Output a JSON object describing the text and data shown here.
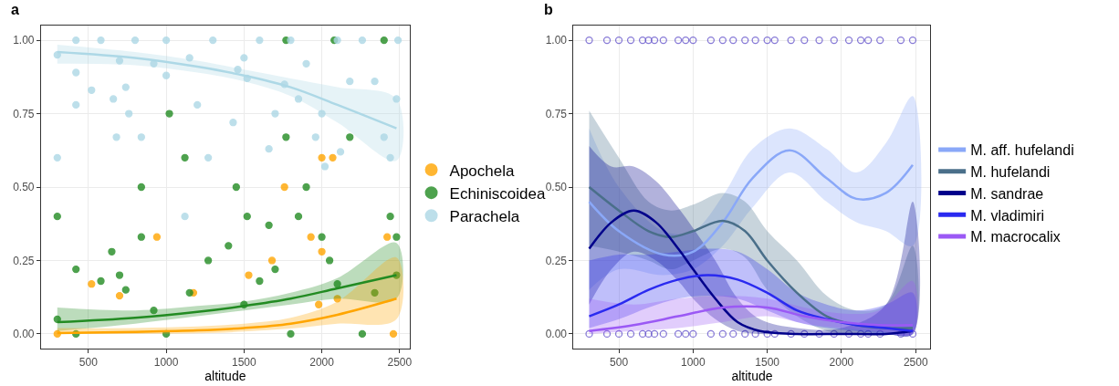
{
  "chart_data": [
    {
      "type": "scatter",
      "annotations": [
        "a"
      ],
      "xlabel": "altitude",
      "xlim": [
        195,
        2565
      ],
      "ylim": [
        -0.05,
        1.05
      ],
      "xticks": [
        500,
        1000,
        1500,
        2000,
        2500
      ],
      "yticks": [
        {
          "value": 0,
          "label": "0.00"
        },
        {
          "value": 0.25,
          "label": "0.25"
        },
        {
          "value": 0.5,
          "label": "0.50"
        },
        {
          "value": 0.75,
          "label": "0.75"
        },
        {
          "value": 1,
          "label": "1.00"
        }
      ],
      "grid": true,
      "legend": "right",
      "marker": "circle",
      "series": [
        {
          "name": "Apochela",
          "color": "#ffa500",
          "x": [
            300,
            520,
            700,
            940,
            1175,
            1530,
            1680,
            1760,
            1930,
            1980,
            2000,
            2070,
            2000,
            2420,
            2460,
            2100
          ],
          "values": [
            0,
            0.17,
            0.13,
            0.33,
            0.14,
            0.2,
            0.25,
            0.5,
            0.33,
            0.1,
            0.6,
            0.6,
            0.28,
            0.33,
            0,
            0.12
          ]
        },
        {
          "name": "Echiniscoidea",
          "color": "#228b22",
          "x": [
            300,
            300,
            420,
            420,
            580,
            650,
            700,
            740,
            840,
            840,
            920,
            1000,
            1020,
            1120,
            1150,
            1270,
            1400,
            1450,
            1520,
            1500,
            1600,
            1660,
            1700,
            1770,
            1770,
            1850,
            1900,
            2000,
            2050,
            2080,
            2100,
            2180,
            2260,
            2340,
            2400,
            2440,
            2480,
            2480,
            1800
          ],
          "values": [
            0.05,
            0.4,
            0.22,
            0,
            0.18,
            0.28,
            0.2,
            0.15,
            0.5,
            0.33,
            0.08,
            0,
            0.75,
            0.6,
            0.14,
            0.25,
            0.3,
            0.5,
            0.4,
            0.1,
            0.18,
            0.37,
            0.22,
            1,
            0.67,
            0.4,
            0.5,
            0.33,
            0.25,
            1,
            0.17,
            0.67,
            0,
            0.14,
            1,
            0.4,
            0.33,
            0.2,
            0
          ]
        },
        {
          "name": "Parachela",
          "color": "#add8e6",
          "x": [
            300,
            300,
            420,
            420,
            420,
            520,
            580,
            660,
            680,
            700,
            740,
            760,
            800,
            840,
            920,
            1000,
            1000,
            1120,
            1150,
            1200,
            1270,
            1300,
            1430,
            1460,
            1500,
            1520,
            1600,
            1660,
            1700,
            1760,
            1800,
            1850,
            1900,
            1960,
            2000,
            2020,
            2100,
            2120,
            2180,
            2260,
            2340,
            2400,
            2440,
            2480,
            2490
          ],
          "values": [
            0.95,
            0.6,
            1,
            0.89,
            0.78,
            0.83,
            1,
            0.8,
            0.67,
            0.93,
            0.84,
            0.75,
            1,
            0.67,
            0.92,
            1,
            0.88,
            0.4,
            0.94,
            0.78,
            0.6,
            1,
            0.72,
            0.9,
            0.94,
            0.87,
            1,
            0.63,
            0.75,
            0.85,
            1,
            0.8,
            0.92,
            0.67,
            0.75,
            0.57,
            1,
            0.62,
            0.86,
            1,
            0.86,
            0.67,
            0.6,
            0.8,
            1
          ]
        },
        {
          "type": "line",
          "marker": "none",
          "color": "#add8e6",
          "x": [
            300,
            800,
            1200,
            1500,
            1800,
            2100,
            2480
          ],
          "values": [
            0.96,
            0.94,
            0.91,
            0.88,
            0.84,
            0.78,
            0.7
          ],
          "lower": [
            0.92,
            0.915,
            0.89,
            0.86,
            0.81,
            0.72,
            0.59
          ],
          "upper": [
            0.985,
            0.96,
            0.93,
            0.9,
            0.87,
            0.84,
            0.8
          ]
        },
        {
          "type": "line",
          "marker": "none",
          "color": "#228b22",
          "x": [
            300,
            800,
            1200,
            1500,
            1800,
            2100,
            2480
          ],
          "values": [
            0.04,
            0.055,
            0.075,
            0.095,
            0.12,
            0.155,
            0.2
          ],
          "lower": [
            0.01,
            0.035,
            0.06,
            0.08,
            0.1,
            0.12,
            0.12
          ],
          "upper": [
            0.09,
            0.08,
            0.095,
            0.11,
            0.14,
            0.19,
            0.31
          ]
        },
        {
          "type": "line",
          "marker": "none",
          "color": "#ffa500",
          "x": [
            300,
            800,
            1200,
            1500,
            1800,
            2100,
            2480
          ],
          "values": [
            0.003,
            0.007,
            0.012,
            0.02,
            0.035,
            0.065,
            0.12
          ],
          "lower": [
            0,
            0,
            0.002,
            0.008,
            0.018,
            0.035,
            0.05
          ],
          "upper": [
            0.02,
            0.02,
            0.025,
            0.035,
            0.055,
            0.11,
            0.26
          ]
        }
      ]
    },
    {
      "type": "line",
      "annotations": [
        "b"
      ],
      "xlabel": "altitude",
      "xlim": [
        195,
        2600
      ],
      "ylim": [
        -0.05,
        1.05
      ],
      "xticks": [
        500,
        1000,
        1500,
        2000,
        2500
      ],
      "yticks": [
        {
          "value": 0,
          "label": "0.00"
        },
        {
          "value": 0.25,
          "label": "0.25"
        },
        {
          "value": 0.5,
          "label": "0.50"
        },
        {
          "value": 0.75,
          "label": "0.75"
        },
        {
          "value": 1,
          "label": "1.00"
        }
      ],
      "grid": true,
      "legend": "right",
      "series": [
        {
          "type": "scatter",
          "color": "#6a5acd",
          "x": [
            300,
            420,
            500,
            580,
            660,
            700,
            740,
            800,
            900,
            950,
            1000,
            1120,
            1200,
            1270,
            1350,
            1420,
            1500,
            1550,
            1660,
            1750,
            1850,
            1950,
            2050,
            2130,
            2180,
            2260,
            2400,
            2480,
            300,
            420,
            500,
            580,
            660,
            700,
            740,
            800,
            900,
            950,
            1000,
            1120,
            1200,
            1270,
            1350,
            1420,
            1500,
            1550,
            1660,
            1750,
            1850,
            1950,
            2050,
            2130,
            2180,
            2260,
            2400,
            2480
          ],
          "values": [
            1,
            1,
            1,
            1,
            1,
            1,
            1,
            1,
            1,
            1,
            1,
            1,
            1,
            1,
            1,
            1,
            1,
            1,
            1,
            1,
            1,
            1,
            1,
            1,
            1,
            1,
            1,
            1,
            0,
            0,
            0,
            0,
            0,
            0,
            0,
            0,
            0,
            0,
            0,
            0,
            0,
            0,
            0,
            0,
            0,
            0,
            0,
            0,
            0,
            0,
            0,
            0,
            0,
            0,
            0,
            0
          ]
        },
        {
          "name": "M. aff. hufelandi",
          "color": "#8aa8f8",
          "x": [
            300,
            500,
            800,
            1000,
            1200,
            1400,
            1650,
            1900,
            2100,
            2300,
            2480
          ],
          "values": [
            0.45,
            0.35,
            0.27,
            0.28,
            0.38,
            0.53,
            0.625,
            0.53,
            0.46,
            0.48,
            0.575
          ],
          "lower": [
            0.15,
            0.22,
            0.2,
            0.22,
            0.3,
            0.43,
            0.55,
            0.45,
            0.38,
            0.35,
            0.3
          ],
          "upper": [
            0.7,
            0.5,
            0.35,
            0.35,
            0.47,
            0.63,
            0.7,
            0.63,
            0.55,
            0.65,
            0.81
          ]
        },
        {
          "name": "M. hufelandi",
          "color": "#4a6f8a",
          "x": [
            300,
            500,
            700,
            850,
            1000,
            1200,
            1350,
            1500,
            1700,
            1900,
            2100,
            2300,
            2480
          ],
          "values": [
            0.5,
            0.42,
            0.35,
            0.33,
            0.35,
            0.385,
            0.35,
            0.25,
            0.14,
            0.06,
            0.03,
            0.02,
            0.02
          ],
          "lower": [
            0.3,
            0.28,
            0.25,
            0.22,
            0.25,
            0.29,
            0.26,
            0.15,
            0.06,
            0.01,
            0,
            0,
            0
          ],
          "upper": [
            0.76,
            0.6,
            0.45,
            0.42,
            0.44,
            0.48,
            0.45,
            0.35,
            0.25,
            0.13,
            0.08,
            0.1,
            0.3
          ]
        },
        {
          "name": "M. sandrae",
          "color": "#00008b",
          "x": [
            300,
            450,
            600,
            750,
            900,
            1000,
            1150,
            1300,
            1450,
            1700,
            2000,
            2300,
            2480
          ],
          "values": [
            0.29,
            0.38,
            0.42,
            0.38,
            0.29,
            0.22,
            0.12,
            0.04,
            0.01,
            0,
            0,
            0,
            0.01
          ],
          "lower": [
            0.1,
            0.22,
            0.28,
            0.25,
            0.18,
            0.12,
            0.05,
            0.01,
            0,
            0,
            0,
            0,
            0
          ],
          "upper": [
            0.64,
            0.57,
            0.57,
            0.52,
            0.43,
            0.36,
            0.25,
            0.12,
            0.05,
            0.02,
            0.02,
            0.1,
            0.45
          ]
        },
        {
          "name": "M. vladimiri",
          "color": "#2a2af0",
          "x": [
            300,
            500,
            700,
            900,
            1100,
            1300,
            1500,
            1700,
            1900,
            2100,
            2300,
            2480
          ],
          "values": [
            0.06,
            0.1,
            0.15,
            0.185,
            0.2,
            0.185,
            0.14,
            0.08,
            0.05,
            0.03,
            0.02,
            0.01
          ],
          "lower": [
            0.02,
            0.05,
            0.09,
            0.12,
            0.13,
            0.12,
            0.08,
            0.04,
            0.02,
            0.01,
            0,
            0
          ],
          "upper": [
            0.25,
            0.27,
            0.27,
            0.28,
            0.29,
            0.28,
            0.22,
            0.14,
            0.1,
            0.08,
            0.1,
            0.14
          ]
        },
        {
          "name": "M. macrocalix",
          "color": "#9b59f5",
          "x": [
            300,
            600,
            900,
            1200,
            1500,
            1750,
            2000,
            2250,
            2480
          ],
          "values": [
            0.01,
            0.03,
            0.06,
            0.09,
            0.09,
            0.06,
            0.04,
            0.03,
            0.03
          ],
          "lower": [
            0,
            0.01,
            0.02,
            0.04,
            0.06,
            0.035,
            0.02,
            0.01,
            0
          ],
          "upper": [
            0.12,
            0.1,
            0.12,
            0.13,
            0.12,
            0.09,
            0.07,
            0.08,
            0.18
          ]
        }
      ]
    }
  ]
}
